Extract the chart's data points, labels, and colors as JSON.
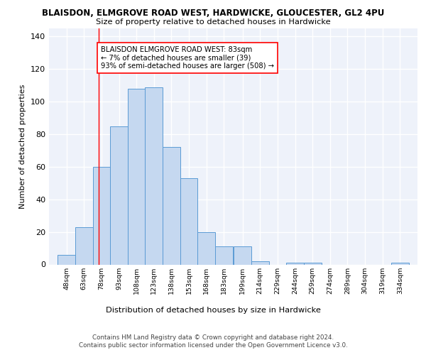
{
  "title": "BLAISDON, ELMGROVE ROAD WEST, HARDWICKE, GLOUCESTER, GL2 4PU",
  "subtitle": "Size of property relative to detached houses in Hardwicke",
  "xlabel": "Distribution of detached houses by size in Hardwicke",
  "ylabel": "Number of detached properties",
  "bins": [
    48,
    63,
    78,
    93,
    108,
    123,
    138,
    153,
    168,
    183,
    199,
    214,
    229,
    244,
    259,
    274,
    289,
    304,
    319,
    334,
    349
  ],
  "counts": [
    6,
    23,
    60,
    85,
    108,
    109,
    72,
    53,
    20,
    11,
    11,
    2,
    0,
    1,
    1,
    0,
    0,
    0,
    0,
    1
  ],
  "bar_color": "#c5d8f0",
  "bar_edge_color": "#5b9bd5",
  "red_line_x": 83,
  "annotation_text": "BLAISDON ELMGROVE ROAD WEST: 83sqm\n← 7% of detached houses are smaller (39)\n93% of semi-detached houses are larger (508) →",
  "ylim": [
    0,
    145
  ],
  "yticks": [
    0,
    20,
    40,
    60,
    80,
    100,
    120,
    140
  ],
  "background_color": "#eef2fa",
  "grid_color": "#ffffff",
  "footnote1": "Contains HM Land Registry data © Crown copyright and database right 2024.",
  "footnote2": "Contains public sector information licensed under the Open Government Licence v3.0."
}
